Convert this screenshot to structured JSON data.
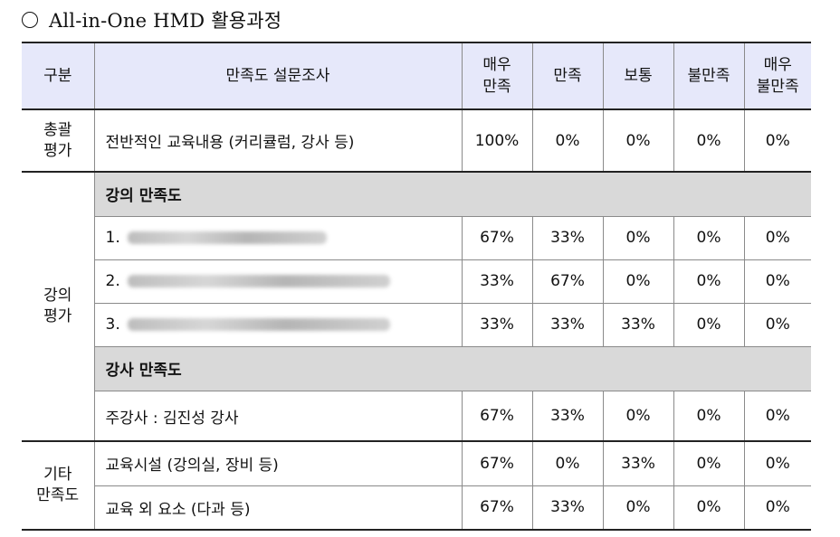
{
  "heading": {
    "text": "All-in-One HMD 활용과정"
  },
  "header": {
    "col_category": "구분",
    "col_survey": "만족도 설문조사",
    "col_very_satisfied": [
      "매우",
      "만족"
    ],
    "col_satisfied": "만족",
    "col_neutral": "보통",
    "col_dissatisfied": "불만족",
    "col_very_dissatisfied": [
      "매우",
      "불만족"
    ]
  },
  "sections": {
    "overall": {
      "category": [
        "총괄",
        "평가"
      ],
      "rows": [
        {
          "label": "전반적인 교육내용 (커리큘럼, 강사 등)",
          "values": [
            "100%",
            "0%",
            "0%",
            "0%",
            "0%"
          ]
        }
      ]
    },
    "lecture": {
      "category": [
        "강의",
        "평가"
      ],
      "subheads": [
        "강의 만족도",
        "강사 만족도"
      ],
      "lecture_rows": [
        {
          "number": "1.",
          "values": [
            "67%",
            "33%",
            "0%",
            "0%",
            "0%"
          ]
        },
        {
          "number": "2.",
          "values": [
            "33%",
            "67%",
            "0%",
            "0%",
            "0%"
          ]
        },
        {
          "number": "3.",
          "values": [
            "33%",
            "33%",
            "33%",
            "0%",
            "0%"
          ]
        }
      ],
      "instructor_rows": [
        {
          "label": "주강사 : 김진성 강사",
          "values": [
            "67%",
            "33%",
            "0%",
            "0%",
            "0%"
          ]
        }
      ]
    },
    "other": {
      "category": [
        "기타",
        "만족도"
      ],
      "rows": [
        {
          "label": "교육시설 (강의실, 장비 등)",
          "values": [
            "67%",
            "0%",
            "33%",
            "0%",
            "0%"
          ]
        },
        {
          "label": "교육 외 요소 (다과 등)",
          "values": [
            "67%",
            "33%",
            "0%",
            "0%",
            "0%"
          ]
        }
      ]
    }
  }
}
